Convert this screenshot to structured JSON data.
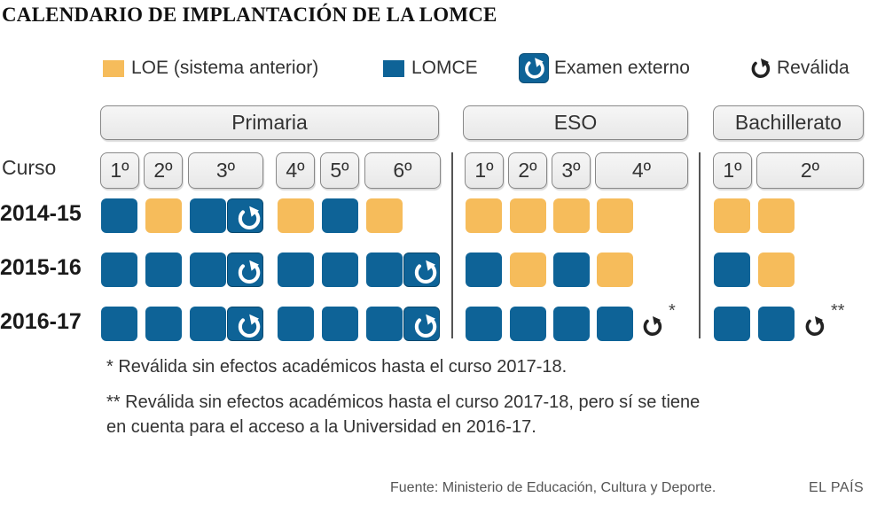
{
  "title": "CALENDARIO DE IMPLANTACIÓN DE LA LOMCE",
  "legend": {
    "loe": "LOE (sistema anterior)",
    "lomce": "LOMCE",
    "examen": "Examen externo",
    "revalida": "Reválida"
  },
  "colors": {
    "loe": "#F6BC5B",
    "lomce": "#0E6397"
  },
  "groups": {
    "primaria": "Primaria",
    "eso": "ESO",
    "bachillerato": "Bachillerato"
  },
  "curso_label": "Curso",
  "grades": {
    "primaria": [
      "1º",
      "2º",
      "3º",
      "4º",
      "5º",
      "6º"
    ],
    "eso": [
      "1º",
      "2º",
      "3º",
      "4º"
    ],
    "bachillerato": [
      "1º",
      "2º"
    ]
  },
  "years": [
    "2014-15",
    "2015-16",
    "2016-17"
  ],
  "grid": {
    "2014-15": {
      "primaria": [
        "LOMCE",
        "LOE",
        "LOMCE",
        "Examen externo",
        "LOE",
        "LOMCE",
        "LOE"
      ],
      "eso": [
        "LOE",
        "LOE",
        "LOE",
        "LOE"
      ],
      "bachillerato": [
        "LOE",
        "LOE"
      ]
    },
    "2015-16": {
      "primaria": [
        "LOMCE",
        "LOMCE",
        "LOMCE",
        "Examen externo",
        "LOMCE",
        "LOMCE",
        "LOMCE",
        "Examen externo"
      ],
      "eso": [
        "LOMCE",
        "LOE",
        "LOMCE",
        "LOE"
      ],
      "bachillerato": [
        "LOMCE",
        "LOE"
      ]
    },
    "2016-17": {
      "primaria": [
        "LOMCE",
        "LOMCE",
        "LOMCE",
        "Examen externo",
        "LOMCE",
        "LOMCE",
        "LOMCE",
        "Examen externo"
      ],
      "eso": [
        "LOMCE",
        "LOMCE",
        "LOMCE",
        "LOMCE",
        "Reválida"
      ],
      "bachillerato": [
        "LOMCE",
        "LOMCE",
        "Reválida"
      ]
    }
  },
  "markers": {
    "eso": "*",
    "bachillerato": "**"
  },
  "notes": {
    "n1": "* Reválida sin efectos académicos hasta el curso 2017-18.",
    "n2_line1": "** Reválida sin efectos académicos hasta el curso 2017-18, pero sí se tiene",
    "n2_line2": "en cuenta para el acceso a la Universidad en 2016-17."
  },
  "source": "Fuente: Ministerio de Educación, Cultura y Deporte.",
  "brand": "EL PAÍS"
}
